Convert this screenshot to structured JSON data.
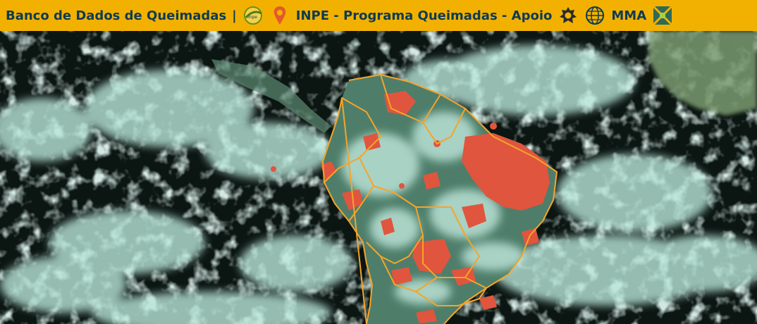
{
  "header": {
    "title": "Banco de Dados de Queimadas",
    "separator": "|",
    "program": "INPE - Programa Queimadas - Apoio",
    "mma": "MMA",
    "colors": {
      "bar": "#f2b100",
      "text": "#0e3b52"
    },
    "icons": [
      "inpe-logo-icon",
      "location-pin-icon",
      "royal-crest-icon",
      "globe-icon",
      "gef-logo-icon"
    ]
  },
  "map": {
    "icons": [
      "satellite-map",
      "fire-hotspot",
      "country-border"
    ],
    "colors": {
      "ocean": "#0b1512",
      "cloud": "#bfe8dc",
      "land": "#4e7e6a",
      "fire": "#e0553e",
      "border": "#f4a52a"
    }
  }
}
